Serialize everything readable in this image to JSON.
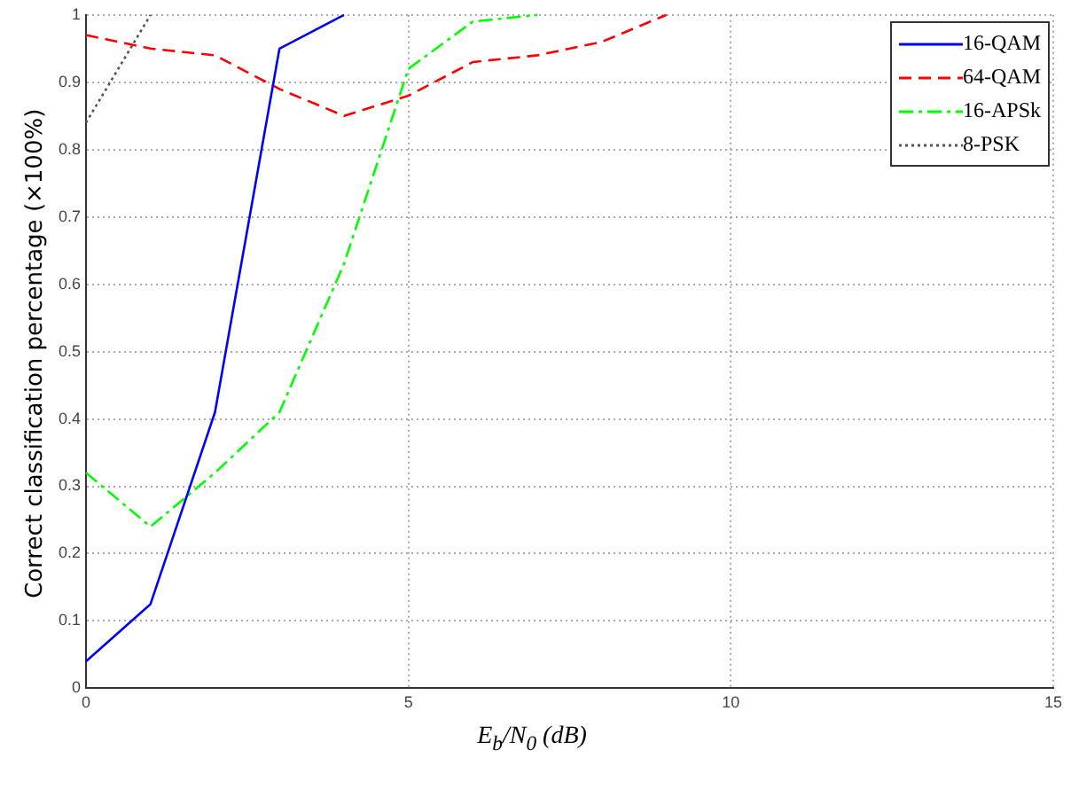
{
  "chart_data": {
    "type": "line",
    "xlabel": "E$_{b}$/N$_{0}$ (dB)",
    "ylabel": "Correct classification percentage (×100%)",
    "x": [
      0,
      1,
      2,
      3,
      4,
      5,
      6,
      7,
      8,
      9
    ],
    "series": [
      {
        "name": "16-QAM",
        "color": "#0000ff",
        "line_style": "solid",
        "values": [
          0.04,
          0.125,
          0.41,
          0.95,
          1,
          null,
          null,
          null,
          null,
          null
        ]
      },
      {
        "name": "64-QAM",
        "color": "#ff0000",
        "line_style": "dashed",
        "values": [
          0.97,
          0.95,
          0.94,
          0.89,
          0.85,
          0.88,
          0.93,
          0.94,
          0.96,
          1
        ]
      },
      {
        "name": "16-APSk",
        "color": "#00ff00",
        "line_style": "dashdot",
        "values": [
          0.32,
          0.24,
          0.32,
          0.41,
          0.63,
          0.92,
          0.99,
          1,
          null,
          null
        ]
      },
      {
        "name": "8-PSK",
        "color": "#555555",
        "line_style": "dotted",
        "values": [
          0.84,
          1,
          null,
          null,
          null,
          null,
          null,
          null,
          null,
          null
        ]
      }
    ],
    "xlim": [
      0,
      15
    ],
    "xticks": [
      0,
      5,
      10,
      15
    ],
    "ylim": [
      0,
      1
    ],
    "yticks": [
      0,
      0.1,
      0.2,
      0.3,
      0.4,
      0.5,
      0.6,
      0.7,
      0.8,
      0.9,
      1
    ],
    "grid": true,
    "legend": "top right",
    "marker": "none"
  }
}
